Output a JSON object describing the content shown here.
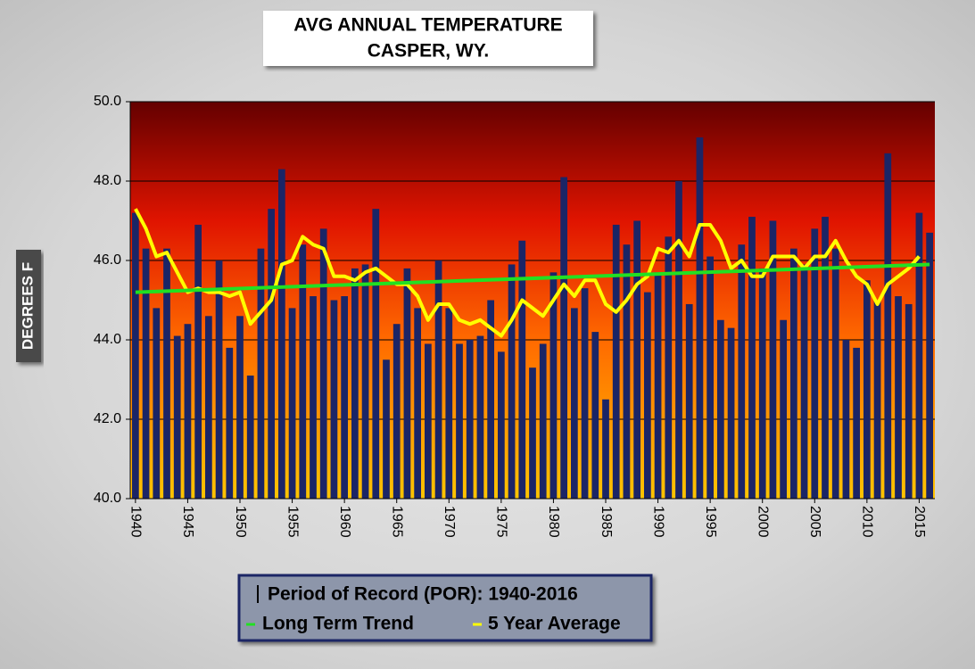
{
  "chart_data": {
    "type": "bar",
    "title": [
      "AVG ANNUAL TEMPERATURE",
      "CASPER, WY."
    ],
    "y_label": "DEGREES F",
    "categories": [
      1940,
      1941,
      1942,
      1943,
      1944,
      1945,
      1946,
      1947,
      1948,
      1949,
      1950,
      1951,
      1952,
      1953,
      1954,
      1955,
      1956,
      1957,
      1958,
      1959,
      1960,
      1961,
      1962,
      1963,
      1964,
      1965,
      1966,
      1967,
      1968,
      1969,
      1970,
      1971,
      1972,
      1973,
      1974,
      1975,
      1976,
      1977,
      1978,
      1979,
      1980,
      1981,
      1982,
      1983,
      1984,
      1985,
      1986,
      1987,
      1988,
      1989,
      1990,
      1991,
      1992,
      1993,
      1994,
      1995,
      1996,
      1997,
      1998,
      1999,
      2000,
      2001,
      2002,
      2003,
      2004,
      2005,
      2006,
      2007,
      2008,
      2009,
      2010,
      2011,
      2012,
      2013,
      2014,
      2015,
      2016
    ],
    "series": [
      {
        "name": "Period of Record (POR): 1940-2016",
        "type": "bar",
        "color": "#1b2566",
        "values": [
          47.2,
          46.3,
          44.8,
          46.3,
          44.1,
          44.4,
          46.9,
          44.6,
          46.0,
          43.8,
          44.6,
          43.1,
          46.3,
          47.3,
          48.3,
          44.8,
          46.4,
          45.1,
          46.8,
          45.0,
          45.1,
          45.8,
          45.9,
          47.3,
          43.5,
          44.4,
          45.8,
          44.8,
          43.9,
          46.0,
          44.8,
          43.9,
          44.0,
          44.1,
          45.0,
          43.7,
          45.9,
          46.5,
          43.3,
          43.9,
          45.7,
          48.1,
          44.8,
          45.3,
          44.2,
          42.5,
          46.9,
          46.4,
          47.0,
          45.2,
          45.7,
          46.6,
          48.0,
          44.9,
          49.1,
          46.1,
          44.5,
          44.3,
          46.4,
          47.1,
          45.8,
          47.0,
          44.5,
          46.3,
          45.9,
          46.8,
          47.1,
          46.3,
          44.0,
          43.8,
          45.5,
          45.0,
          48.7,
          45.1,
          44.9,
          47.2,
          46.7
        ]
      },
      {
        "name": "5 Year Average",
        "type": "line",
        "color": "#ffff00",
        "values": [
          47.3,
          46.8,
          46.1,
          46.2,
          45.7,
          45.2,
          45.3,
          45.2,
          45.2,
          45.1,
          45.2,
          44.4,
          44.7,
          45.0,
          45.9,
          46.0,
          46.6,
          46.4,
          46.3,
          45.6,
          45.6,
          45.5,
          45.7,
          45.8,
          45.6,
          45.4,
          45.4,
          45.1,
          44.5,
          44.9,
          44.9,
          44.5,
          44.4,
          44.5,
          44.3,
          44.1,
          44.5,
          45.0,
          44.8,
          44.6,
          45.0,
          45.4,
          45.1,
          45.5,
          45.5,
          44.9,
          44.7,
          45.0,
          45.4,
          45.6,
          46.3,
          46.2,
          46.5,
          46.1,
          46.9,
          46.9,
          46.5,
          45.8,
          46.0,
          45.6,
          45.6,
          46.1,
          46.1,
          46.1,
          45.8,
          46.1,
          46.1,
          46.5,
          46.0,
          45.6,
          45.4,
          44.9,
          45.4,
          45.6,
          45.8,
          46.1,
          null
        ]
      },
      {
        "name": "Long Term Trend",
        "type": "line",
        "color": "#22e022",
        "x": [
          1940,
          2016
        ],
        "values": [
          45.2,
          45.9
        ]
      }
    ],
    "ylim": [
      40,
      50
    ],
    "yticks": [
      {
        "value": 40,
        "label": "40.0"
      },
      {
        "value": 42,
        "label": "42.0"
      },
      {
        "value": 44,
        "label": "44.0"
      },
      {
        "value": 46,
        "label": "46.0"
      },
      {
        "value": 48,
        "label": "48.0"
      },
      {
        "value": 50,
        "label": "50.0"
      }
    ],
    "xticks": [
      1940,
      1945,
      1950,
      1955,
      1960,
      1965,
      1970,
      1975,
      1980,
      1985,
      1990,
      1995,
      2000,
      2005,
      2010,
      2015
    ],
    "grid": true
  }
}
